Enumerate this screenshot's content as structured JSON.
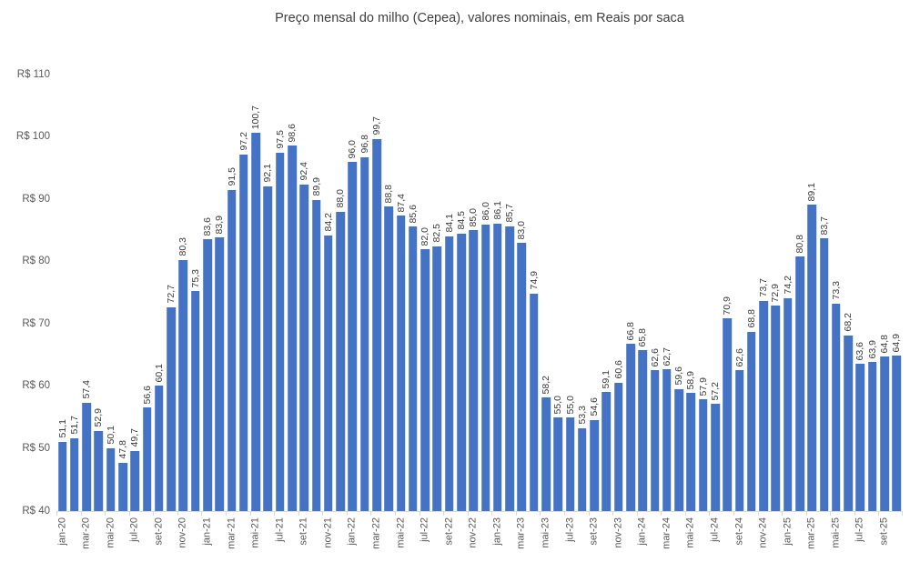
{
  "chart_data": {
    "type": "bar",
    "title": "Preço mensal do milho (Cepea), valores nominais, em Reais por saca",
    "bar_color": "#4472C4",
    "axis_color": "#d9d9d9",
    "ylim": [
      40,
      110
    ],
    "grid": false,
    "legend": "none",
    "y_ticks": [
      {
        "value": 110,
        "label": "R$ 110"
      },
      {
        "value": 100,
        "label": "R$ 100"
      },
      {
        "value": 90,
        "label": "R$ 90"
      },
      {
        "value": 80,
        "label": "R$ 80"
      },
      {
        "value": 70,
        "label": "R$ 70"
      },
      {
        "value": 60,
        "label": "R$ 60"
      },
      {
        "value": 50,
        "label": "R$ 50"
      },
      {
        "value": 40,
        "label": "R$ 40"
      }
    ],
    "x_tick_every": 2,
    "x_tick_labels": [
      "jan-20",
      "mar-20",
      "mai-20",
      "jul-20",
      "set-20",
      "nov-20",
      "jan-21",
      "mar-21",
      "mai-21",
      "jul-21",
      "set-21",
      "nov-21",
      "jan-22",
      "mar-22",
      "mai-22",
      "jul-22",
      "set-22",
      "nov-22",
      "jan-23",
      "mar-23",
      "mai-23",
      "jul-23",
      "set-23",
      "nov-23",
      "jan-24",
      "mar-24",
      "mai-24",
      "jul-24",
      "set-24",
      "nov-24",
      "jan-25",
      "mar-25",
      "mai-25",
      "jul-25",
      "set-25"
    ],
    "values": [
      51.1,
      51.7,
      57.4,
      52.9,
      50.1,
      47.8,
      49.7,
      56.6,
      60.1,
      72.7,
      80.3,
      75.3,
      83.6,
      83.9,
      91.5,
      97.2,
      100.7,
      92.1,
      97.5,
      98.6,
      92.4,
      89.9,
      84.2,
      88.0,
      96.0,
      96.8,
      99.7,
      88.8,
      87.4,
      85.6,
      82.0,
      82.5,
      84.1,
      84.5,
      85.0,
      86.0,
      86.1,
      85.7,
      83.0,
      74.9,
      58.2,
      55.0,
      55.0,
      53.3,
      54.6,
      59.1,
      60.6,
      66.8,
      65.8,
      62.6,
      62.7,
      59.6,
      58.9,
      57.9,
      57.2,
      70.9,
      62.6,
      68.8,
      73.7,
      72.9,
      74.2,
      80.8,
      89.1,
      83.7,
      73.3,
      68.2,
      63.6,
      63.9,
      64.8,
      64.9
    ],
    "bar_labels": [
      "51,1",
      "51,7",
      "57,4",
      "52,9",
      "50,1",
      "47,8",
      "49,7",
      "56,6",
      "60,1",
      "72,7",
      "80,3",
      "75,3",
      "83,6",
      "83,9",
      "91,5",
      "97,2",
      "100,7",
      "92,1",
      "97,5",
      "98,6",
      "92,4",
      "89,9",
      "84,2",
      "88,0",
      "96,0",
      "96,8",
      "99,7",
      "88,8",
      "87,4",
      "85,6",
      "82,0",
      "82,5",
      "84,1",
      "84,5",
      "85,0",
      "86,0",
      "86,1",
      "85,7",
      "83,0",
      "74,9",
      "58,2",
      "55,0",
      "55,0",
      "53,3",
      "54,6",
      "59,1",
      "60,6",
      "66,8",
      "65,8",
      "62,6",
      "62,7",
      "59,6",
      "58,9",
      "57,9",
      "57,2",
      "70,9",
      "62,6",
      "68,8",
      "73,7",
      "72,9",
      "74,2",
      "80,8",
      "89,1",
      "83,7",
      "73,3",
      "68,2",
      "63,6",
      "63,9",
      "64,8",
      "64,9"
    ]
  }
}
